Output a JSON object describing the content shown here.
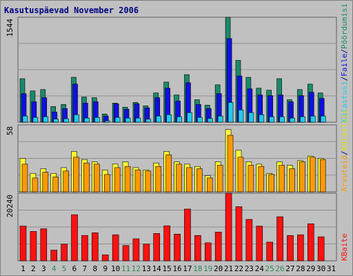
{
  "title": "Kasutuspäevad November 2006",
  "colors": {
    "frame_bg": "#c0c0c0",
    "plot_bg": "#c0c0c0",
    "title": "#000080",
    "weekday_label": "#000000",
    "weekend_label": "#2e8b57",
    "pages": "#1a8a6a",
    "files": "#1010e0",
    "visits": "#22ccee",
    "hosts": "#ffff33",
    "hosts_label": "#e0e000",
    "visits_panel": "#ff9900",
    "kbytes": "#ff1111"
  },
  "legends": {
    "top": [
      "Külastusi",
      "/",
      "Faile",
      "/",
      "Pöördumisi"
    ],
    "middle": [
      "Arvuteid",
      "/",
      "Külastusi"
    ],
    "bottom": [
      "KBaite"
    ]
  },
  "chart_data": [
    {
      "type": "bar",
      "panel": "top",
      "ymax_label": "1544",
      "ymax": 1544,
      "categories": [
        "1",
        "2",
        "3",
        "4",
        "5",
        "6",
        "7",
        "8",
        "9",
        "10",
        "11",
        "12",
        "13",
        "14",
        "15",
        "16",
        "17",
        "18",
        "19",
        "20",
        "21",
        "22",
        "23",
        "24",
        "25",
        "26",
        "27",
        "28",
        "29",
        "30",
        "31"
      ],
      "weekend_days": [
        "4",
        "5",
        "11",
        "12",
        "18",
        "19",
        "25",
        "26"
      ],
      "series": [
        {
          "name": "Pöördumisi",
          "values": [
            640,
            460,
            480,
            230,
            260,
            660,
            370,
            360,
            120,
            280,
            220,
            290,
            240,
            430,
            590,
            400,
            700,
            330,
            250,
            550,
            1544,
            910,
            660,
            500,
            470,
            640,
            330,
            480,
            560,
            430,
            0
          ]
        },
        {
          "name": "Faile",
          "values": [
            420,
            300,
            360,
            150,
            200,
            560,
            280,
            300,
            90,
            270,
            190,
            270,
            210,
            360,
            500,
            310,
            580,
            260,
            200,
            420,
            1230,
            680,
            490,
            400,
            390,
            400,
            300,
            390,
            440,
            350,
            0
          ]
        },
        {
          "name": "Külastusi",
          "values": [
            90,
            70,
            80,
            45,
            50,
            110,
            60,
            70,
            20,
            70,
            60,
            60,
            45,
            90,
            110,
            80,
            140,
            70,
            55,
            90,
            290,
            180,
            140,
            110,
            80,
            80,
            60,
            80,
            90,
            90,
            0
          ]
        }
      ]
    },
    {
      "type": "bar",
      "panel": "middle",
      "ymax_label": "58",
      "ymax": 58,
      "categories": [
        "1",
        "2",
        "3",
        "4",
        "5",
        "6",
        "7",
        "8",
        "9",
        "10",
        "11",
        "12",
        "13",
        "14",
        "15",
        "16",
        "17",
        "18",
        "19",
        "20",
        "21",
        "22",
        "23",
        "24",
        "25",
        "26",
        "27",
        "28",
        "29",
        "30",
        "31"
      ],
      "series": [
        {
          "name": "Arvuteid",
          "values": [
            29,
            16,
            20,
            16,
            21,
            35,
            28,
            26,
            19,
            24,
            26,
            21,
            19,
            25,
            35,
            26,
            24,
            22,
            14,
            26,
            54,
            36,
            26,
            24,
            16,
            26,
            23,
            27,
            31,
            29,
            0
          ]
        },
        {
          "name": "Külastusi",
          "values": [
            24,
            12,
            17,
            13,
            18,
            30,
            25,
            24,
            15,
            21,
            22,
            19,
            18,
            22,
            32,
            24,
            21,
            20,
            12,
            23,
            49,
            30,
            23,
            22,
            15,
            23,
            20,
            26,
            30,
            28,
            0
          ]
        }
      ]
    },
    {
      "type": "bar",
      "panel": "bottom",
      "ymax_label": "20240",
      "ymax": 20240,
      "categories": [
        "1",
        "2",
        "3",
        "4",
        "5",
        "6",
        "7",
        "8",
        "9",
        "10",
        "11",
        "12",
        "13",
        "14",
        "15",
        "16",
        "17",
        "18",
        "19",
        "20",
        "21",
        "22",
        "23",
        "24",
        "25",
        "26",
        "27",
        "28",
        "29",
        "30",
        "31"
      ],
      "series": [
        {
          "name": "KBaite",
          "values": [
            10400,
            8800,
            9600,
            3200,
            5000,
            13800,
            7600,
            8400,
            1800,
            7800,
            4600,
            6600,
            5000,
            8200,
            10500,
            8000,
            15500,
            7600,
            5400,
            8600,
            20240,
            16200,
            12400,
            10400,
            5600,
            13200,
            7600,
            7800,
            11100,
            7200,
            0
          ]
        }
      ]
    }
  ]
}
